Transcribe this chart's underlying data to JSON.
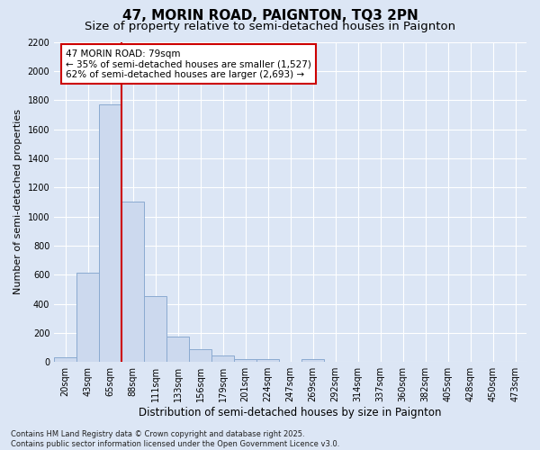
{
  "title_line1": "47, MORIN ROAD, PAIGNTON, TQ3 2PN",
  "title_line2": "Size of property relative to semi-detached houses in Paignton",
  "xlabel": "Distribution of semi-detached houses by size in Paignton",
  "ylabel": "Number of semi-detached properties",
  "categories": [
    "20sqm",
    "43sqm",
    "65sqm",
    "88sqm",
    "111sqm",
    "133sqm",
    "156sqm",
    "179sqm",
    "201sqm",
    "224sqm",
    "247sqm",
    "269sqm",
    "292sqm",
    "314sqm",
    "337sqm",
    "360sqm",
    "382sqm",
    "405sqm",
    "428sqm",
    "450sqm",
    "473sqm"
  ],
  "values": [
    30,
    615,
    1770,
    1100,
    450,
    175,
    90,
    45,
    20,
    20,
    0,
    20,
    0,
    0,
    0,
    0,
    0,
    0,
    0,
    0,
    0
  ],
  "bar_color": "#ccd9ee",
  "bar_edge_color": "#8aaad0",
  "vline_x_pos": 2.5,
  "vline_color": "#cc0000",
  "annotation_text": "47 MORIN ROAD: 79sqm\n← 35% of semi-detached houses are smaller (1,527)\n62% of semi-detached houses are larger (2,693) →",
  "annotation_box_facecolor": "#ffffff",
  "annotation_box_edgecolor": "#cc0000",
  "ylim_max": 2200,
  "yticks": [
    0,
    200,
    400,
    600,
    800,
    1000,
    1200,
    1400,
    1600,
    1800,
    2000,
    2200
  ],
  "background_color": "#dce6f5",
  "grid_color": "#ffffff",
  "footer_line1": "Contains HM Land Registry data © Crown copyright and database right 2025.",
  "footer_line2": "Contains public sector information licensed under the Open Government Licence v3.0.",
  "title1_fontsize": 11,
  "title2_fontsize": 9.5,
  "tick_fontsize": 7,
  "xlabel_fontsize": 8.5,
  "ylabel_fontsize": 8,
  "annot_fontsize": 7.5,
  "footer_fontsize": 6
}
